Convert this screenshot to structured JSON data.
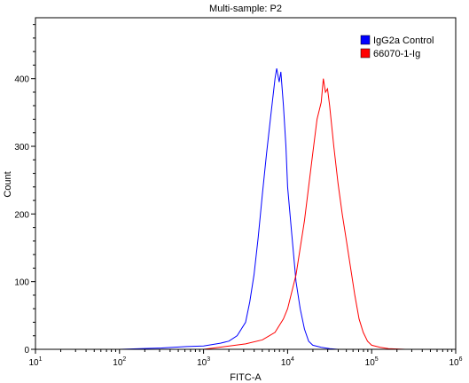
{
  "chart_data": {
    "type": "line",
    "title": "Multi-sample: P2",
    "xlabel": "FITC-A",
    "ylabel": "Count",
    "x_scale": "log",
    "xlim": [
      10,
      1000000
    ],
    "ylim": [
      0,
      490
    ],
    "x_ticks": [
      {
        "value": 10,
        "base": "10",
        "exp": "1"
      },
      {
        "value": 100,
        "base": "10",
        "exp": "2"
      },
      {
        "value": 1000,
        "base": "10",
        "exp": "3"
      },
      {
        "value": 10000,
        "base": "10",
        "exp": "4"
      },
      {
        "value": 100000,
        "base": "10",
        "exp": "5"
      },
      {
        "value": 1000000,
        "base": "10",
        "exp": "6"
      }
    ],
    "y_ticks": [
      {
        "value": 0,
        "label": "0"
      },
      {
        "value": 100,
        "label": "100"
      },
      {
        "value": 200,
        "label": "200"
      },
      {
        "value": 300,
        "label": "300"
      },
      {
        "value": 400,
        "label": "400"
      }
    ],
    "grid": false,
    "legend_position": "top-right",
    "series": [
      {
        "name": "IgG2a Control",
        "color": "#0000ff",
        "x": [
          10,
          100,
          316,
          631,
          1000,
          1585,
          2000,
          2512,
          3162,
          3548,
          3981,
          4467,
          5012,
          5623,
          6310,
          7079,
          7413,
          7943,
          8318,
          8913,
          9550,
          10000,
          11220,
          12589,
          14125,
          15849,
          17783,
          19953,
          25119,
          31623,
          39811,
          100000,
          1000000
        ],
        "y": [
          0,
          0,
          2,
          4,
          5,
          9,
          12,
          20,
          40,
          70,
          110,
          165,
          230,
          290,
          345,
          400,
          415,
          395,
          410,
          360,
          300,
          240,
          170,
          100,
          60,
          30,
          12,
          6,
          3,
          1,
          0,
          0,
          0
        ]
      },
      {
        "name": "66070-1-Ig",
        "color": "#ff0000",
        "x": [
          10,
          1000,
          3162,
          5012,
          7079,
          8913,
          10000,
          12589,
          15849,
          17783,
          19953,
          22387,
          25119,
          26607,
          28184,
          29854,
          31623,
          35481,
          39811,
          44668,
          50119,
          56234,
          63096,
          70795,
          79433,
          89125,
          100000,
          125893,
          158489,
          251189,
          1000000
        ],
        "y": [
          0,
          0,
          8,
          14,
          25,
          45,
          60,
          110,
          190,
          240,
          290,
          340,
          365,
          400,
          380,
          385,
          360,
          300,
          245,
          200,
          160,
          120,
          80,
          45,
          25,
          12,
          6,
          3,
          1,
          0,
          0
        ]
      }
    ]
  }
}
